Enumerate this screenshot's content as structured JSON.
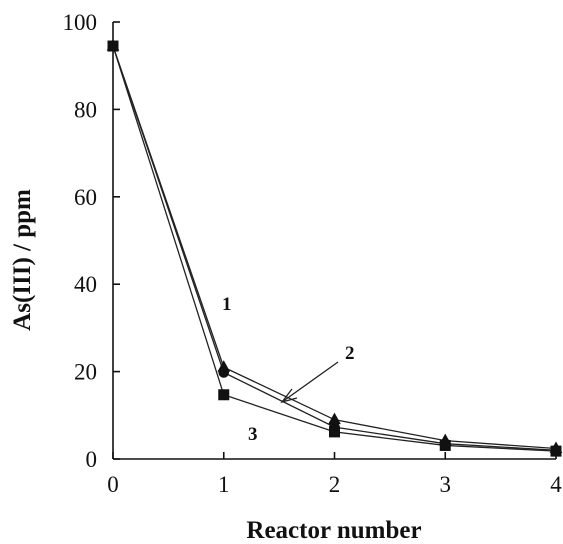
{
  "chart_data": {
    "type": "line",
    "x": [
      0,
      1,
      2,
      3,
      4
    ],
    "xlabel": "Reactor number",
    "ylabel": "As(III) / ppm",
    "xlim": [
      0,
      4
    ],
    "ylim": [
      0,
      100
    ],
    "xticks": [
      "0",
      "1",
      "2",
      "3",
      "4"
    ],
    "yticks": [
      "0",
      "20",
      "40",
      "60",
      "80",
      "100"
    ],
    "grid": false,
    "series": [
      {
        "label": "1",
        "marker": "triangle",
        "values": [
          94.5,
          21.0,
          9.0,
          4.2,
          2.4
        ]
      },
      {
        "label": "2",
        "marker": "circle",
        "values": [
          94.5,
          19.8,
          7.3,
          3.5,
          2.0
        ]
      },
      {
        "label": "3",
        "marker": "square",
        "values": [
          94.5,
          14.7,
          6.2,
          3.1,
          1.8
        ]
      }
    ]
  }
}
